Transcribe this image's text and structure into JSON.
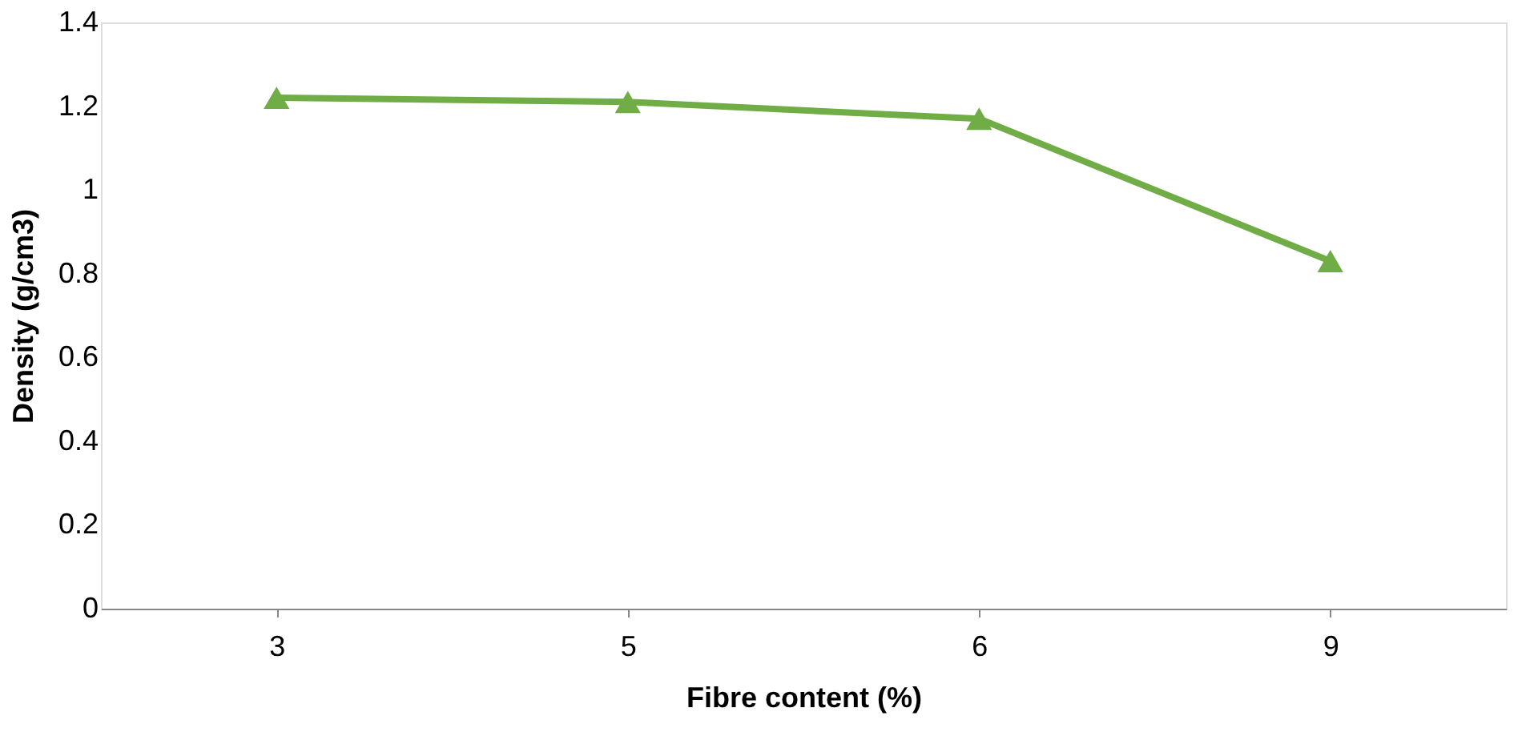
{
  "chart_data": {
    "type": "line",
    "xlabel": "Fibre content (%)",
    "ylabel": "Density (g/cm3)",
    "categories": [
      "3",
      "5",
      "6",
      "9"
    ],
    "series": [
      {
        "color": "#70ad47",
        "values": [
          1.22,
          1.21,
          1.17,
          0.83
        ]
      }
    ],
    "ylim": [
      0,
      1.4
    ],
    "yticks": [
      0,
      0.2,
      0.4,
      0.6,
      0.8,
      1,
      1.2,
      1.4
    ],
    "marker": "triangle",
    "line_style": "solid",
    "grid": false,
    "legend": false
  }
}
